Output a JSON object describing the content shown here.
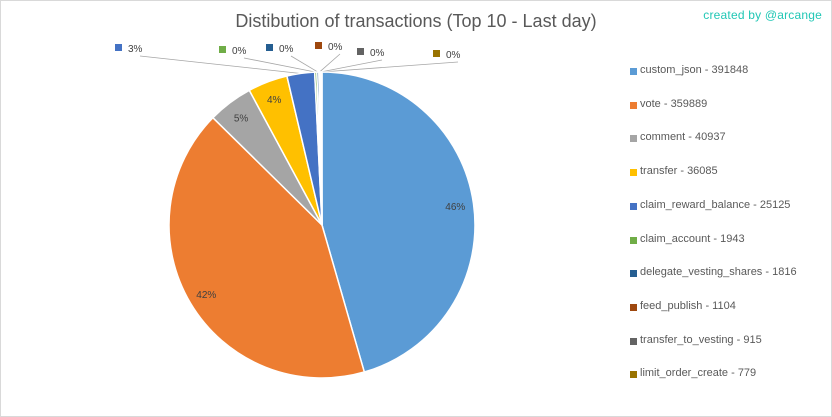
{
  "credit": "created by @arcange",
  "chart_data": {
    "type": "pie",
    "title": "Distibution of transactions (Top 10 - Last day)",
    "legend_position": "right",
    "slices": [
      {
        "label": "custom_json - 391848",
        "value": 391848,
        "percent_label": "46%",
        "color": "#5b9bd5"
      },
      {
        "label": "vote - 359889",
        "value": 359889,
        "percent_label": "42%",
        "color": "#ed7d31"
      },
      {
        "label": "comment - 40937",
        "value": 40937,
        "percent_label": "5%",
        "color": "#a5a5a5"
      },
      {
        "label": "transfer - 36085",
        "value": 36085,
        "percent_label": "4%",
        "color": "#ffc000"
      },
      {
        "label": "claim_reward_balance - 25125",
        "value": 25125,
        "percent_label": "3%",
        "color": "#4472c4"
      },
      {
        "label": "claim_account - 1943",
        "value": 1943,
        "percent_label": "0%",
        "color": "#70ad47"
      },
      {
        "label": "delegate_vesting_shares - 1816",
        "value": 1816,
        "percent_label": "0%",
        "color": "#255e91"
      },
      {
        "label": "feed_publish - 1104",
        "value": 1104,
        "percent_label": "0%",
        "color": "#9e480e"
      },
      {
        "label": "transfer_to_vesting - 915",
        "value": 915,
        "percent_label": "0%",
        "color": "#636363"
      },
      {
        "label": "limit_order_create - 779",
        "value": 779,
        "percent_label": "0%",
        "color": "#997300"
      }
    ]
  }
}
